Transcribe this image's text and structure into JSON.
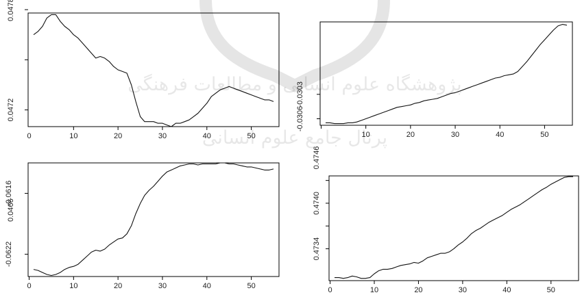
{
  "chart_data": [
    {
      "type": "line",
      "x": [
        1,
        2,
        3,
        4,
        5,
        6,
        7,
        8,
        9,
        10,
        11,
        12,
        13,
        14,
        15,
        16,
        17,
        18,
        19,
        20,
        21,
        22,
        23,
        24,
        25,
        26,
        27,
        28,
        29,
        30,
        31,
        32,
        33,
        34,
        35,
        36,
        37,
        38,
        39,
        40,
        41,
        42,
        43,
        44,
        45,
        46,
        47,
        48,
        49,
        50,
        51,
        52,
        53,
        54,
        55
      ],
      "values": [
        0.04765,
        0.04767,
        0.0477,
        0.04775,
        0.04777,
        0.04777,
        0.04773,
        0.0477,
        0.04768,
        0.04765,
        0.04763,
        0.0476,
        0.04757,
        0.04754,
        0.04751,
        0.04752,
        0.04751,
        0.04749,
        0.04746,
        0.04744,
        0.04743,
        0.04742,
        0.04735,
        0.04725,
        0.04716,
        0.04713,
        0.04713,
        0.04713,
        0.04712,
        0.04712,
        0.04711,
        0.0471,
        0.04712,
        0.04712,
        0.04713,
        0.04714,
        0.04716,
        0.04718,
        0.04721,
        0.04724,
        0.04728,
        0.0473,
        0.04732,
        0.04733,
        0.04734,
        0.04733,
        0.04732,
        0.04731,
        0.0473,
        0.04729,
        0.04728,
        0.04727,
        0.04726,
        0.04726,
        0.04725
      ],
      "xlim": [
        1,
        55
      ],
      "ylim": [
        0.0471,
        0.04778
      ],
      "xticks": [
        "10",
        "20",
        "30",
        "40",
        "50"
      ],
      "xtick_values": [
        10,
        20,
        30,
        40,
        50
      ],
      "xtick_labels": [
        "0",
        "10",
        "20",
        "30",
        "40",
        "50"
      ],
      "xtick_label_values": [
        0,
        10,
        20,
        30,
        40,
        50
      ],
      "yticks": [
        "0.0466",
        "0.0472",
        "0.0478"
      ],
      "ytick_values": [
        0.0466,
        0.0472,
        0.0478
      ],
      "ytick_labels": [
        "0.0466",
        "0.0472",
        "0.0478"
      ],
      "yticks_minor": [
        0.0469,
        0.0475
      ],
      "grid": false
    },
    {
      "type": "line",
      "x": [
        1,
        2,
        3,
        4,
        5,
        6,
        7,
        8,
        9,
        10,
        11,
        12,
        13,
        14,
        15,
        16,
        17,
        18,
        19,
        20,
        21,
        22,
        23,
        24,
        25,
        26,
        27,
        28,
        29,
        30,
        31,
        32,
        33,
        34,
        35,
        36,
        37,
        38,
        39,
        40,
        41,
        42,
        43,
        44,
        45,
        46,
        47,
        48,
        49,
        50,
        51,
        52,
        53,
        54,
        55
      ],
      "values": [
        -0.03065,
        -0.03065,
        -0.03066,
        -0.03066,
        -0.03066,
        -0.03065,
        -0.03065,
        -0.03064,
        -0.03062,
        -0.0306,
        -0.03058,
        -0.03056,
        -0.03054,
        -0.03052,
        -0.0305,
        -0.03048,
        -0.03046,
        -0.03045,
        -0.03044,
        -0.03043,
        -0.03041,
        -0.0304,
        -0.03038,
        -0.03037,
        -0.03036,
        -0.03035,
        -0.03033,
        -0.03031,
        -0.03029,
        -0.03028,
        -0.03026,
        -0.03024,
        -0.03022,
        -0.0302,
        -0.03018,
        -0.03016,
        -0.03014,
        -0.03012,
        -0.0301,
        -0.03009,
        -0.03007,
        -0.03006,
        -0.03005,
        -0.03002,
        -0.02996,
        -0.0299,
        -0.02983,
        -0.02976,
        -0.02969,
        -0.02963,
        -0.02957,
        -0.02951,
        -0.02946,
        -0.02944,
        -0.02945
      ],
      "xlim": [
        1,
        55
      ],
      "ylim": [
        -0.03068,
        -0.02941
      ],
      "xticks": [
        "0",
        "10",
        "20",
        "30",
        "40",
        "50"
      ],
      "xtick_values": [
        0,
        10,
        20,
        30,
        40,
        50
      ],
      "xtick_labels": [
        "10",
        "20",
        "30",
        "40",
        "50"
      ],
      "xtick_label_values": [
        10,
        20,
        30,
        40,
        50
      ],
      "yticks": [
        "-0.0306",
        "-0.0303"
      ],
      "ytick_values": [
        -0.0306,
        -0.0303
      ],
      "ytick_labels": [
        "-0.0306",
        "-0.0303"
      ],
      "yticks_minor": [],
      "grid": false
    },
    {
      "type": "line",
      "x": [
        1,
        2,
        3,
        4,
        5,
        6,
        7,
        8,
        9,
        10,
        11,
        12,
        13,
        14,
        15,
        16,
        17,
        18,
        19,
        20,
        21,
        22,
        23,
        24,
        25,
        26,
        27,
        28,
        29,
        30,
        31,
        32,
        33,
        34,
        35,
        36,
        37,
        38,
        39,
        40,
        41,
        42,
        43,
        44,
        45,
        46,
        47,
        48,
        49,
        50,
        51,
        52,
        53,
        54,
        55
      ],
      "values": [
        -0.06235,
        -0.06236,
        -0.06238,
        -0.0624,
        -0.06241,
        -0.0624,
        -0.06238,
        -0.06235,
        -0.06233,
        -0.06232,
        -0.0623,
        -0.06226,
        -0.06222,
        -0.06218,
        -0.06216,
        -0.06217,
        -0.06215,
        -0.06211,
        -0.06208,
        -0.06205,
        -0.06204,
        -0.062,
        -0.06192,
        -0.0618,
        -0.0617,
        -0.06162,
        -0.06157,
        -0.06153,
        -0.06148,
        -0.06143,
        -0.06139,
        -0.06137,
        -0.06135,
        -0.06133,
        -0.06132,
        -0.06131,
        -0.06131,
        -0.06132,
        -0.06131,
        -0.06131,
        -0.06131,
        -0.06131,
        -0.0613,
        -0.0613,
        -0.06131,
        -0.06131,
        -0.06132,
        -0.06133,
        -0.06134,
        -0.06134,
        -0.06135,
        -0.06136,
        -0.06137,
        -0.06137,
        -0.06136
      ],
      "xlim": [
        1,
        55
      ],
      "ylim": [
        -0.06242,
        -0.0613
      ],
      "xticks": [
        "0",
        "10",
        "20",
        "30",
        "40",
        "50"
      ],
      "xtick_values": [
        0,
        10,
        20,
        30,
        40,
        50
      ],
      "xtick_labels": [
        "0",
        "10",
        "20",
        "30",
        "40",
        "50"
      ],
      "xtick_label_values": [
        0,
        10,
        20,
        30,
        40,
        50
      ],
      "yticks": [
        "-0.0622",
        "-0.0616"
      ],
      "ytick_values": [
        -0.0622,
        -0.0616
      ],
      "ytick_labels": [
        "-0.0622",
        "-0.0616"
      ],
      "yticks_minor": [],
      "grid": false
    },
    {
      "type": "line",
      "x": [
        1,
        2,
        3,
        4,
        5,
        6,
        7,
        8,
        9,
        10,
        11,
        12,
        13,
        14,
        15,
        16,
        17,
        18,
        19,
        20,
        21,
        22,
        23,
        24,
        25,
        26,
        27,
        28,
        29,
        30,
        31,
        32,
        33,
        34,
        35,
        36,
        37,
        38,
        39,
        40,
        41,
        42,
        43,
        44,
        45,
        46,
        47,
        48,
        49,
        50,
        51,
        52,
        53,
        54,
        55
      ],
      "values": [
        0.47302,
        0.47302,
        0.47301,
        0.47302,
        0.47304,
        0.47303,
        0.47301,
        0.47301,
        0.47302,
        0.47307,
        0.47311,
        0.47313,
        0.47313,
        0.47314,
        0.47316,
        0.47318,
        0.47319,
        0.4732,
        0.47322,
        0.47321,
        0.47324,
        0.47328,
        0.4733,
        0.47332,
        0.47334,
        0.47334,
        0.47336,
        0.4734,
        0.47345,
        0.47349,
        0.47354,
        0.4736,
        0.47364,
        0.47367,
        0.47371,
        0.47375,
        0.47378,
        0.47381,
        0.47384,
        0.47388,
        0.47392,
        0.47395,
        0.47398,
        0.47402,
        0.47406,
        0.4741,
        0.47414,
        0.47418,
        0.47421,
        0.47425,
        0.47428,
        0.47431,
        0.47434,
        0.47435,
        0.47435
      ],
      "xlim": [
        1,
        55
      ],
      "ylim": [
        0.47298,
        0.47436
      ],
      "xticks": [
        "0",
        "10",
        "20",
        "30",
        "40",
        "50"
      ],
      "xtick_values": [
        0,
        10,
        20,
        30,
        40,
        50
      ],
      "xtick_labels": [
        "0",
        "10",
        "20",
        "30",
        "40",
        "50"
      ],
      "xtick_label_values": [
        0,
        10,
        20,
        30,
        40,
        50
      ],
      "yticks": [
        "0.4734",
        "0.4740",
        "0.4746"
      ],
      "ytick_values": [
        0.4734,
        0.474,
        0.4746
      ],
      "ytick_labels": [
        "0.4734",
        "0.4740",
        "0.4746"
      ],
      "yticks_minor": [
        0.4737,
        0.4743
      ],
      "grid": false
    }
  ],
  "watermark": {
    "line1": "پژوهشگاه علوم انسانی و مطالعات فرهنگی",
    "line2": "پرتال جامع علوم انسانی"
  }
}
